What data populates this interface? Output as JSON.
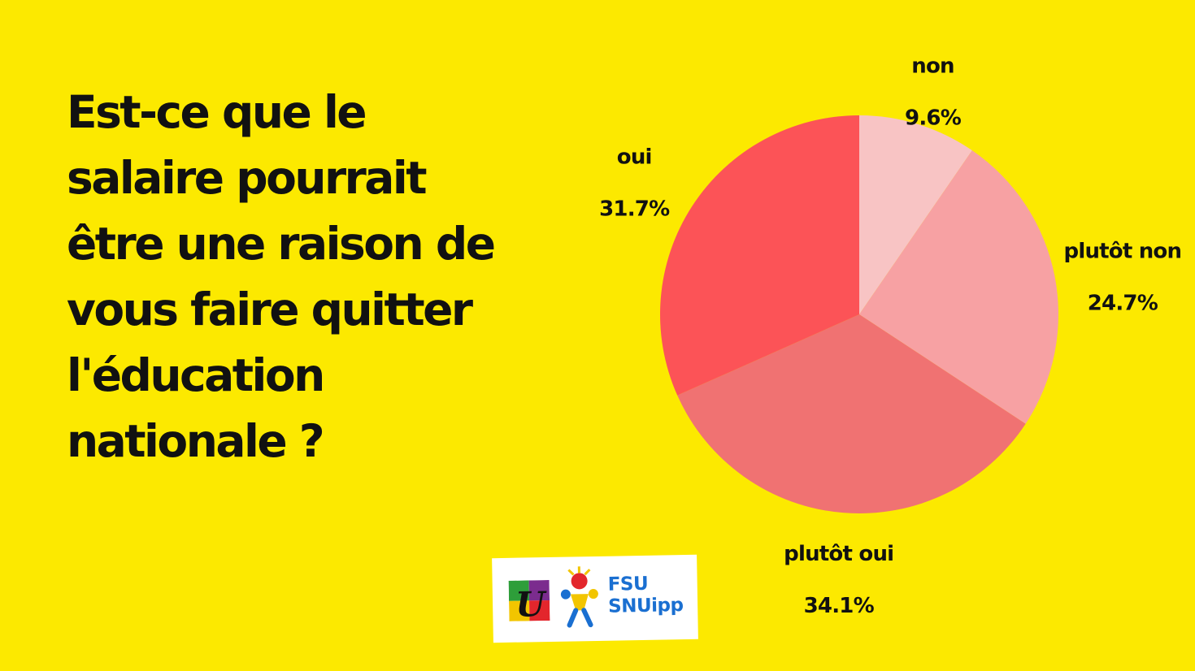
{
  "question": "Est-ce que le\nsalaire pourrait\nêtre une raison de\nvous faire quitter\nl'éducation\nnationale ?",
  "chart_data": {
    "type": "pie",
    "title": "",
    "slices": [
      {
        "label": "non",
        "value": 9.6,
        "display": "9.6%",
        "color": "#F8C4C4"
      },
      {
        "label": "plutôt non",
        "value": 24.7,
        "display": "24.7%",
        "color": "#F7A1A3"
      },
      {
        "label": "plutôt oui",
        "value": 34.1,
        "display": "34.1%",
        "color": "#F07272"
      },
      {
        "label": "oui",
        "value": 31.7,
        "display": "31.7%",
        "color": "#FC5357"
      }
    ],
    "start_angle": "12 o'clock",
    "direction": "clockwise",
    "legend": "none"
  },
  "logo": {
    "u_letter": "U",
    "org_line1": "FSU",
    "org_line2": "SNUipp"
  }
}
